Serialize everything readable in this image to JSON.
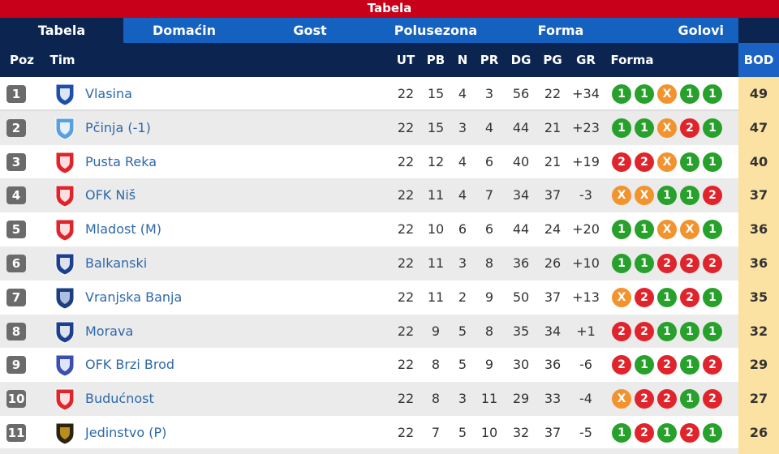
{
  "title": "Tabela",
  "tabs": [
    "Tabela",
    "Domaćin",
    "Gost",
    "Polusezona",
    "Forma",
    "Golovi"
  ],
  "headers": {
    "poz": "Poz",
    "tim": "Tim",
    "ut": "UT",
    "pb": "PB",
    "n": "N",
    "pr": "PR",
    "dg": "DG",
    "pg": "PG",
    "gr": "GR",
    "forma": "Forma",
    "bod": "BOD"
  },
  "colors": {
    "win": "#27a12b",
    "draw": "#f2932e",
    "loss": "#e0242c",
    "header": "#0b2550",
    "tab": "#1561bf",
    "title_bar": "#c8001a",
    "points_bg": "#fbe2a2"
  },
  "rows": [
    {
      "pos": "1",
      "team": "Vlasina",
      "ut": "22",
      "pb": "15",
      "n": "4",
      "pr": "3",
      "dg": "56",
      "pg": "22",
      "gr": "+34",
      "form": [
        "1",
        "1",
        "X",
        "1",
        "1"
      ],
      "bod": "49",
      "logo": [
        "#1d4fa8",
        "#fff"
      ]
    },
    {
      "pos": "2",
      "team": "Pčinja (-1)",
      "ut": "22",
      "pb": "15",
      "n": "3",
      "pr": "4",
      "dg": "44",
      "pg": "21",
      "gr": "+23",
      "form": [
        "1",
        "1",
        "X",
        "2",
        "1"
      ],
      "bod": "47",
      "logo": [
        "#5aa0e0",
        "#fff"
      ]
    },
    {
      "pos": "3",
      "team": "Pusta Reka",
      "ut": "22",
      "pb": "12",
      "n": "4",
      "pr": "6",
      "dg": "40",
      "pg": "21",
      "gr": "+19",
      "form": [
        "2",
        "2",
        "X",
        "1",
        "1"
      ],
      "bod": "40",
      "logo": [
        "#e0242c",
        "#fff"
      ]
    },
    {
      "pos": "4",
      "team": "OFK Niš",
      "ut": "22",
      "pb": "11",
      "n": "4",
      "pr": "7",
      "dg": "34",
      "pg": "37",
      "gr": "-3",
      "form": [
        "X",
        "X",
        "1",
        "1",
        "2"
      ],
      "bod": "37",
      "logo": [
        "#e0242c",
        "#fff"
      ]
    },
    {
      "pos": "5",
      "team": "Mladost (M)",
      "ut": "22",
      "pb": "10",
      "n": "6",
      "pr": "6",
      "dg": "44",
      "pg": "24",
      "gr": "+20",
      "form": [
        "1",
        "1",
        "X",
        "X",
        "1"
      ],
      "bod": "36",
      "logo": [
        "#e0242c",
        "#fff"
      ]
    },
    {
      "pos": "6",
      "team": "Balkanski",
      "ut": "22",
      "pb": "11",
      "n": "3",
      "pr": "8",
      "dg": "36",
      "pg": "26",
      "gr": "+10",
      "form": [
        "1",
        "1",
        "2",
        "2",
        "2"
      ],
      "bod": "36",
      "logo": [
        "#1d3f90",
        "#fff"
      ]
    },
    {
      "pos": "7",
      "team": "Vranjska Banja",
      "ut": "22",
      "pb": "11",
      "n": "2",
      "pr": "9",
      "dg": "50",
      "pg": "37",
      "gr": "+13",
      "form": [
        "X",
        "2",
        "1",
        "2",
        "1"
      ],
      "bod": "35",
      "logo": [
        "#1d3f80",
        "#c9d6f0"
      ]
    },
    {
      "pos": "8",
      "team": "Morava",
      "ut": "22",
      "pb": "9",
      "n": "5",
      "pr": "8",
      "dg": "35",
      "pg": "34",
      "gr": "+1",
      "form": [
        "2",
        "2",
        "1",
        "1",
        "1"
      ],
      "bod": "32",
      "logo": [
        "#1d3f90",
        "#fff"
      ]
    },
    {
      "pos": "9",
      "team": "OFK Brzi Brod",
      "ut": "22",
      "pb": "8",
      "n": "5",
      "pr": "9",
      "dg": "30",
      "pg": "36",
      "gr": "-6",
      "form": [
        "2",
        "1",
        "2",
        "1",
        "2"
      ],
      "bod": "29",
      "logo": [
        "#3a4fb0",
        "#fff"
      ]
    },
    {
      "pos": "10",
      "team": "Budućnost",
      "ut": "22",
      "pb": "8",
      "n": "3",
      "pr": "11",
      "dg": "29",
      "pg": "33",
      "gr": "-4",
      "form": [
        "X",
        "2",
        "2",
        "1",
        "2"
      ],
      "bod": "27",
      "logo": [
        "#e0242c",
        "#fff"
      ]
    },
    {
      "pos": "11",
      "team": "Jedinstvo (P)",
      "ut": "22",
      "pb": "7",
      "n": "5",
      "pr": "10",
      "dg": "32",
      "pg": "37",
      "gr": "-5",
      "form": [
        "1",
        "2",
        "1",
        "2",
        "1"
      ],
      "bod": "26",
      "logo": [
        "#2a2310",
        "#d4a020"
      ]
    }
  ]
}
